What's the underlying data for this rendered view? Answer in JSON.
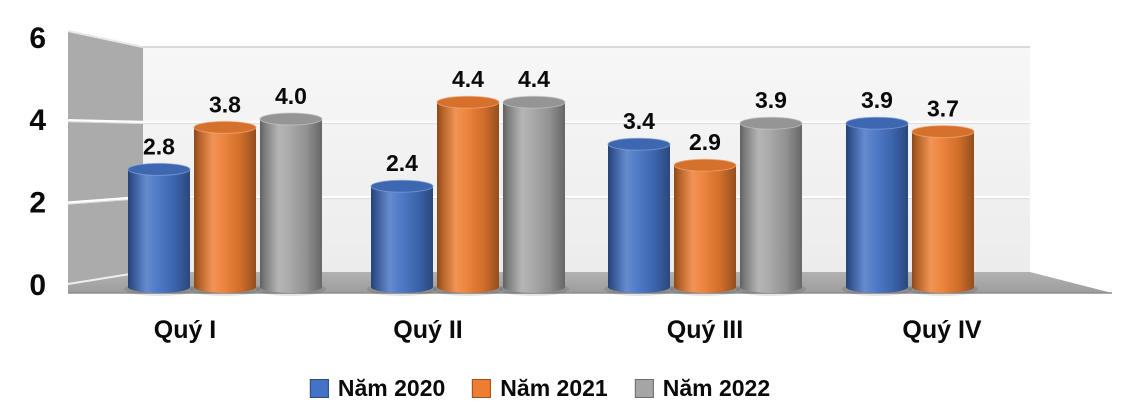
{
  "chart_data": {
    "type": "bar",
    "subtype": "3d-cylinder-column",
    "title": "",
    "categories": [
      "Quý I",
      "Quý II",
      "Quý III",
      "Quý IV"
    ],
    "series": [
      {
        "name": "Năm 2020",
        "color": "#4472C4",
        "values": [
          2.8,
          2.4,
          3.4,
          3.9
        ]
      },
      {
        "name": "Năm 2021",
        "color": "#ED7D31",
        "values": [
          3.8,
          4.4,
          2.9,
          3.7
        ]
      },
      {
        "name": "Năm 2022",
        "color": "#A5A5A5",
        "values": [
          4.0,
          4.4,
          3.9,
          null
        ]
      }
    ],
    "y_ticks": [
      0,
      2,
      4,
      6
    ],
    "ylim": [
      0,
      6
    ],
    "xlabel": "",
    "ylabel": "",
    "grid": true,
    "legend_position": "bottom",
    "value_labels_shown": true,
    "value_label_format": "0.0",
    "wall_color": "#ABABAB",
    "back_wall_color": "#F2F2F2",
    "floor_color": "#A6A6A6",
    "text_color": "#0A0A0A"
  }
}
